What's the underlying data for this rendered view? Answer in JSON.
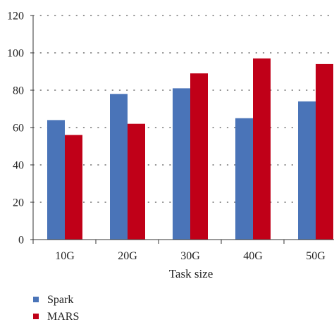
{
  "chart_data": {
    "type": "bar",
    "categories": [
      "10G",
      "20G",
      "30G",
      "40G",
      "50G"
    ],
    "series": [
      {
        "name": "Spark",
        "values": [
          64,
          78,
          81,
          65,
          74
        ],
        "color": "#4a74b8"
      },
      {
        "name": "MARS",
        "values": [
          56,
          62,
          89,
          97,
          94
        ],
        "color": "#c00018"
      }
    ],
    "xlabel": "Task size",
    "ylabel": "",
    "ylim": [
      0,
      120
    ],
    "yticks": [
      0,
      20,
      40,
      60,
      80,
      100,
      120
    ],
    "ytick_labels": [
      "0",
      "20",
      "40",
      "60",
      "80",
      "100",
      "120"
    ],
    "grid": "horizontal dotted",
    "legend_position": "bottom-left"
  }
}
